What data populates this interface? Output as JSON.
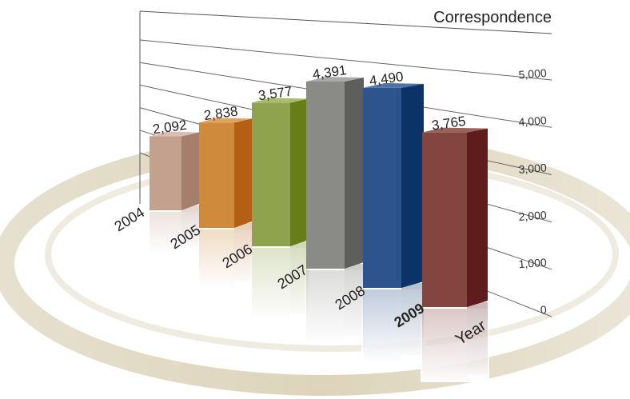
{
  "chart_data": {
    "type": "bar",
    "categories": [
      "2004",
      "2005",
      "2006",
      "2007",
      "2008",
      "2009"
    ],
    "values": [
      2092,
      2838,
      3577,
      4391,
      4490,
      3765
    ],
    "value_labels": [
      "2,092",
      "2,838",
      "3,577",
      "4,391",
      "4,490",
      "3,765"
    ],
    "ylabel": "Correspondence",
    "xlabel": "Year",
    "yticks": [
      0,
      1000,
      2000,
      3000,
      4000,
      5000
    ],
    "ytick_labels": [
      "0",
      "1,000",
      "2,000",
      "3,000",
      "4,000",
      "5,000"
    ],
    "ylim": [
      0,
      5000
    ],
    "colors": [
      "#c4a08e",
      "#cf8a3c",
      "#8fa24e",
      "#8a8a86",
      "#2d548c",
      "#83453f"
    ],
    "side_colors": [
      "#a57f6c",
      "#b45f14",
      "#667d18",
      "#5e5e5a",
      "#0c3368",
      "#5e1c1c"
    ],
    "top_colors": [
      "#d9beaf",
      "#e0a462",
      "#aabd6e",
      "#a9a9a5",
      "#4d72a6",
      "#9b615b"
    ],
    "grid": true,
    "legend": "none"
  }
}
